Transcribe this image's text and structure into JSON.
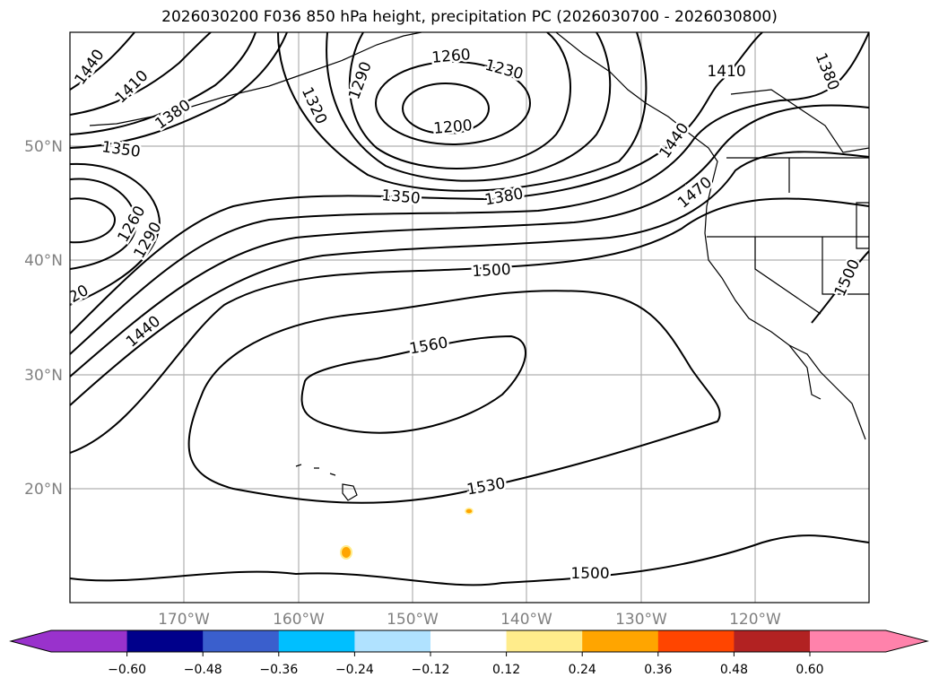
{
  "title": "2026030200 F036 850 hPa height, precipitation PC (2026030700 - 2026030800)",
  "axes": {
    "lat_labels": [
      "50°N",
      "40°N",
      "30°N",
      "20°N"
    ],
    "lon_labels": [
      "170°W",
      "160°W",
      "150°W",
      "140°W",
      "130°W",
      "120°W"
    ]
  },
  "contour_labels": [
    "1440",
    "1410",
    "1380",
    "1350",
    "1320",
    "1290",
    "1260",
    "1230",
    "1200",
    "1350",
    "1380",
    "1410",
    "1380",
    "1440",
    "1470",
    "1260",
    "1290",
    "20",
    "1440",
    "1500",
    "1560",
    "1530",
    "1500",
    "1500"
  ],
  "colorbar": {
    "ticks": [
      "−0.60",
      "−0.48",
      "−0.36",
      "−0.24",
      "−0.12",
      "0.12",
      "0.24",
      "0.36",
      "0.48",
      "0.60"
    ],
    "colors": [
      "#9932cc",
      "#00008b",
      "#3a5fcd",
      "#00bfff",
      "#b0e2ff",
      "#ffffff",
      "#ffec8b",
      "#ffa500",
      "#ff4500",
      "#b22222",
      "#ff82ab"
    ]
  }
}
